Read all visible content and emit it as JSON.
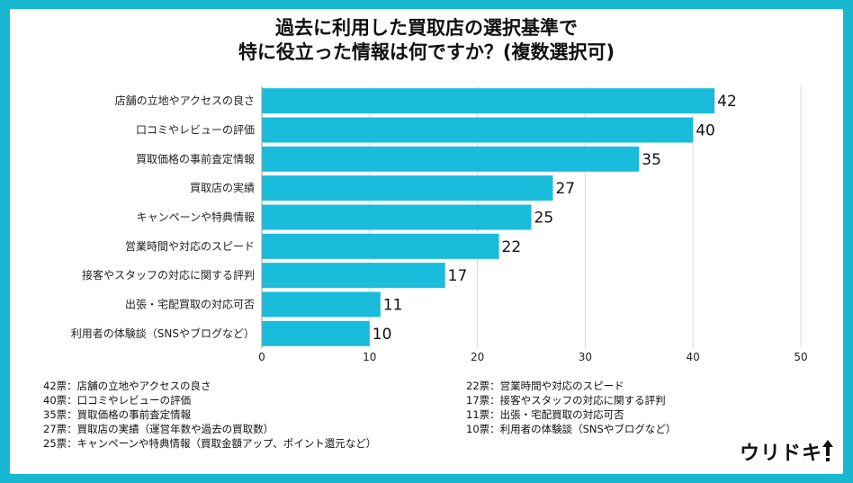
{
  "title_lines": [
    "過去に利用した買取店の選択基準で",
    "特に役立った情報は何ですか？(複数選択可)"
  ],
  "chart_data": {
    "type": "bar",
    "orientation": "horizontal",
    "categories": [
      "店舗の立地やアクセスの良さ",
      "口コミやレビューの評価",
      "買取価格の事前査定情報",
      "買取店の実績",
      "キャンペーンや特典情報",
      "営業時間や対応のスピード",
      "接客やスタッフの対応に関する評判",
      "出張・宅配買取の対応可否",
      "利用者の体験談（SNSやブログなど）"
    ],
    "values": [
      42,
      40,
      35,
      27,
      25,
      22,
      17,
      11,
      10
    ],
    "xlim": [
      0,
      50
    ],
    "xticks": [
      0,
      10,
      20,
      30,
      40,
      50
    ],
    "grid": true,
    "bar_color": "#19bcda"
  },
  "notes_left": [
    "42票：店舗の立地やアクセスの良さ",
    "40票：口コミやレビューの評価",
    "35票：買取価格の事前査定情報",
    "27票：買取店の実績（運営年数や過去の買取数）",
    "25票：キャンペーンや特典情報（買取金額アップ、ポイント還元など）"
  ],
  "notes_right": [
    "22票：営業時間や対応のスピード",
    "17票：接客やスタッフの対応に関する評判",
    "11票：出張・宅配買取の対応可否",
    "10票：利用者の体験談（SNSやブログなど）"
  ],
  "logo_text": "ウリドキ",
  "frame_color": "#19b7d2"
}
